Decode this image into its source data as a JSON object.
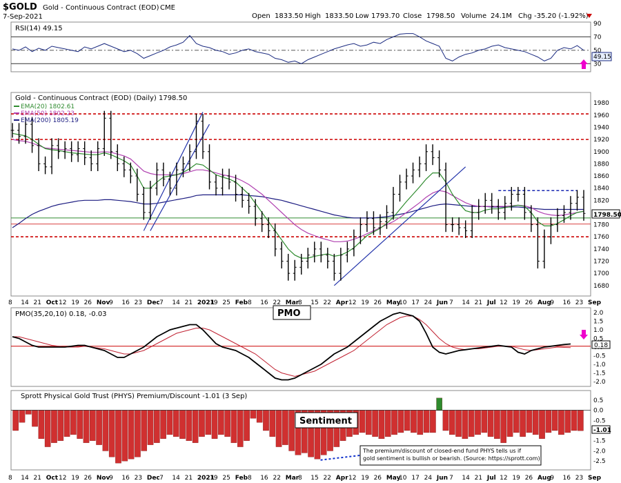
{
  "header": {
    "symbol": "$GOLD",
    "name": "Gold - Continuous Contract (EOD)",
    "exchange": "CME",
    "date": "7-Sep-2021",
    "open_label": "Open",
    "open": "1833.50",
    "high_label": "High",
    "high": "1833.50",
    "low_label": "Low",
    "low": "1793.70",
    "close_label": "Close",
    "close": "1798.50",
    "volume_label": "Volume",
    "volume": "24.1M",
    "chg_label": "Chg",
    "chg": "-35.20 (-1.92%)"
  },
  "colors": {
    "candle": "#000000",
    "ema20": "#2e8b2e",
    "ema50": "#b040b0",
    "ema200": "#1a1a80",
    "rsi": "#1a2a80",
    "pmo": "#000000",
    "pmo_signal": "#c02030",
    "hist_neg": "#d03030",
    "hist_pos": "#2e8b2e",
    "hline_red": "#cc0000",
    "hline_green": "#2e8b2e",
    "trend": "#2233aa",
    "arrow": "#ee00cc",
    "tag_bg": "#e8f0ff"
  },
  "chart_data": [
    {
      "panel": "rsi",
      "type": "line",
      "title": "RSI(14) 49.15",
      "ylim": [
        20,
        90
      ],
      "ticks": [
        90,
        70,
        50,
        30
      ],
      "levels": [
        70,
        30
      ],
      "current": "49.15",
      "values": [
        52,
        50,
        55,
        48,
        53,
        50,
        56,
        54,
        52,
        50,
        48,
        55,
        52,
        56,
        60,
        56,
        52,
        48,
        50,
        45,
        38,
        42,
        46,
        50,
        55,
        58,
        62,
        72,
        60,
        56,
        54,
        50,
        48,
        44,
        46,
        50,
        52,
        48,
        46,
        44,
        38,
        36,
        32,
        34,
        30,
        36,
        40,
        44,
        48,
        52,
        55,
        58,
        60,
        56,
        58,
        62,
        60,
        66,
        70,
        74,
        75,
        75,
        70,
        64,
        60,
        56,
        38,
        34,
        40,
        44,
        46,
        50,
        52,
        56,
        58,
        54,
        52,
        50,
        48,
        44,
        40,
        34,
        38,
        50,
        54,
        52,
        57,
        50
      ],
      "unit": "2021"
    },
    {
      "panel": "price",
      "type": "candlestick",
      "title": "Gold - Continuous Contract (EOD) (Daily) 1798.50",
      "legend": [
        {
          "name": "EMA(20) 1802.61",
          "color": "#2e8b2e"
        },
        {
          "name": "EMA(50) 1802.23",
          "color": "#b040b0"
        },
        {
          "name": "EMA(200) 1805.19",
          "color": "#1a1a80"
        }
      ],
      "ylim": [
        1665,
        1995
      ],
      "ticks": [
        1980,
        1960,
        1940,
        1920,
        1900,
        1880,
        1860,
        1840,
        1820,
        1800,
        1780,
        1760,
        1740,
        1720,
        1700,
        1680
      ],
      "close_label": "1798.50",
      "resistance_lines": [
        1962,
        1920,
        1760
      ],
      "support_green": 1791,
      "close_line": 1790,
      "top_dashed": {
        "value": 1836,
        "from": 74,
        "to": 86
      },
      "x_labels": [
        "8",
        "14",
        "21",
        "Oct",
        "12",
        "19",
        "26",
        "Nov",
        "9",
        "16",
        "23",
        "Dec",
        "7",
        "14",
        "21",
        "2021",
        "19",
        "25",
        "Feb",
        "8",
        "16",
        "22",
        "Mar",
        "8",
        "15",
        "22",
        "Apr",
        "12",
        "19",
        "26",
        "May",
        "10",
        "17",
        "24",
        "Jun",
        "7",
        "14",
        "21",
        "Jul",
        "12",
        "19",
        "26",
        "Aug",
        "9",
        "16",
        "23",
        "Sep"
      ],
      "closes": [
        1935,
        1925,
        1945,
        1910,
        1880,
        1875,
        1910,
        1900,
        1905,
        1895,
        1905,
        1890,
        1880,
        1905,
        1955,
        1900,
        1880,
        1870,
        1860,
        1830,
        1800,
        1840,
        1870,
        1855,
        1840,
        1870,
        1880,
        1900,
        1950,
        1900,
        1850,
        1840,
        1860,
        1850,
        1830,
        1820,
        1810,
        1790,
        1780,
        1770,
        1740,
        1720,
        1700,
        1710,
        1720,
        1730,
        1740,
        1730,
        1720,
        1700,
        1730,
        1740,
        1760,
        1780,
        1790,
        1775,
        1785,
        1800,
        1830,
        1850,
        1860,
        1870,
        1880,
        1900,
        1890,
        1870,
        1780,
        1780,
        1775,
        1770,
        1800,
        1810,
        1820,
        1810,
        1800,
        1815,
        1830,
        1830,
        1800,
        1780,
        1720,
        1760,
        1780,
        1795,
        1800,
        1815,
        1825,
        1798.5
      ],
      "trend_lines": [
        {
          "from": [
            20,
            1770
          ],
          "to": [
            29,
            1965
          ]
        },
        {
          "from": [
            21,
            1770
          ],
          "to": [
            30,
            1945
          ]
        },
        {
          "from": [
            49,
            1680
          ],
          "to": [
            69,
            1875
          ]
        }
      ],
      "ema20": [
        1930,
        1928,
        1926,
        1920,
        1912,
        1905,
        1903,
        1902,
        1900,
        1898,
        1897,
        1896,
        1895,
        1895,
        1898,
        1895,
        1890,
        1885,
        1878,
        1860,
        1840,
        1840,
        1850,
        1858,
        1860,
        1862,
        1866,
        1872,
        1880,
        1878,
        1870,
        1862,
        1858,
        1855,
        1850,
        1840,
        1830,
        1815,
        1800,
        1785,
        1770,
        1755,
        1740,
        1730,
        1725,
        1725,
        1728,
        1730,
        1732,
        1728,
        1730,
        1735,
        1742,
        1752,
        1762,
        1768,
        1774,
        1782,
        1792,
        1805,
        1818,
        1830,
        1842,
        1855,
        1865,
        1865,
        1850,
        1830,
        1815,
        1803,
        1800,
        1800,
        1804,
        1806,
        1806,
        1808,
        1810,
        1812,
        1810,
        1800,
        1785,
        1778,
        1778,
        1782,
        1788,
        1795,
        1800,
        1802
      ],
      "ema50": [
        1920,
        1918,
        1917,
        1914,
        1910,
        1906,
        1905,
        1904,
        1903,
        1902,
        1901,
        1900,
        1899,
        1899,
        1900,
        1899,
        1896,
        1893,
        1888,
        1878,
        1868,
        1864,
        1862,
        1862,
        1862,
        1862,
        1864,
        1867,
        1870,
        1870,
        1868,
        1865,
        1862,
        1860,
        1857,
        1852,
        1846,
        1838,
        1830,
        1820,
        1810,
        1800,
        1790,
        1780,
        1772,
        1766,
        1762,
        1758,
        1755,
        1752,
        1752,
        1753,
        1756,
        1760,
        1765,
        1770,
        1775,
        1780,
        1785,
        1792,
        1800,
        1808,
        1816,
        1825,
        1832,
        1836,
        1834,
        1828,
        1822,
        1816,
        1812,
        1810,
        1810,
        1810,
        1810,
        1810,
        1811,
        1812,
        1811,
        1808,
        1802,
        1798,
        1796,
        1795,
        1796,
        1798,
        1800,
        1802
      ],
      "ema200": [
        1775,
        1782,
        1790,
        1797,
        1802,
        1806,
        1810,
        1813,
        1815,
        1817,
        1819,
        1820,
        1820,
        1820,
        1821,
        1821,
        1820,
        1819,
        1818,
        1816,
        1814,
        1814,
        1815,
        1817,
        1819,
        1821,
        1823,
        1825,
        1828,
        1829,
        1829,
        1829,
        1829,
        1829,
        1829,
        1829,
        1828,
        1827,
        1826,
        1824,
        1822,
        1820,
        1817,
        1814,
        1811,
        1808,
        1805,
        1802,
        1799,
        1796,
        1794,
        1792,
        1791,
        1791,
        1791,
        1791,
        1792,
        1793,
        1795,
        1797,
        1799,
        1802,
        1805,
        1808,
        1811,
        1813,
        1814,
        1813,
        1812,
        1811,
        1810,
        1810,
        1810,
        1809,
        1809,
        1809,
        1809,
        1809,
        1808,
        1807,
        1806,
        1805,
        1805,
        1805,
        1805,
        1805,
        1805,
        1805
      ]
    },
    {
      "panel": "pmo",
      "type": "line",
      "title": "PMO(35,20,10) 0.18, -0.03",
      "tag": "PMO",
      "ylim": [
        -2.2,
        2.2
      ],
      "ticks": [
        2.0,
        1.5,
        1.0,
        0.5,
        0.0,
        -0.5,
        -1.0,
        -1.5,
        -2.0
      ],
      "current": "0.18",
      "signal_current": "-0.03",
      "zero_line": 0.05,
      "pmo": [
        0.6,
        0.5,
        0.3,
        0.1,
        0.0,
        0.0,
        0.0,
        0.0,
        0.0,
        0.05,
        0.1,
        0.1,
        0.0,
        -0.1,
        -0.2,
        -0.4,
        -0.6,
        -0.6,
        -0.4,
        -0.2,
        0.0,
        0.3,
        0.6,
        0.8,
        1.0,
        1.1,
        1.2,
        1.3,
        1.3,
        1.0,
        0.6,
        0.2,
        0.0,
        -0.1,
        -0.2,
        -0.4,
        -0.6,
        -0.9,
        -1.2,
        -1.5,
        -1.8,
        -1.9,
        -1.9,
        -1.8,
        -1.6,
        -1.4,
        -1.2,
        -1.0,
        -0.7,
        -0.4,
        -0.2,
        0.0,
        0.3,
        0.6,
        0.9,
        1.2,
        1.5,
        1.7,
        1.9,
        2.0,
        1.9,
        1.8,
        1.5,
        0.8,
        0.0,
        -0.3,
        -0.4,
        -0.3,
        -0.2,
        -0.15,
        -0.1,
        -0.05,
        0.0,
        0.05,
        0.1,
        0.05,
        0.0,
        -0.3,
        -0.4,
        -0.2,
        -0.1,
        0.0,
        0.05,
        0.1,
        0.15,
        0.18
      ],
      "signal": [
        0.6,
        0.6,
        0.5,
        0.4,
        0.3,
        0.2,
        0.1,
        0.05,
        0.0,
        0.0,
        0.0,
        0.05,
        0.0,
        -0.05,
        -0.1,
        -0.2,
        -0.3,
        -0.4,
        -0.4,
        -0.3,
        -0.2,
        0.0,
        0.2,
        0.4,
        0.6,
        0.8,
        0.9,
        1.0,
        1.1,
        1.1,
        1.0,
        0.8,
        0.6,
        0.4,
        0.2,
        0.0,
        -0.2,
        -0.4,
        -0.7,
        -1.0,
        -1.3,
        -1.5,
        -1.6,
        -1.7,
        -1.6,
        -1.5,
        -1.4,
        -1.2,
        -1.0,
        -0.8,
        -0.6,
        -0.4,
        -0.2,
        0.1,
        0.4,
        0.7,
        1.0,
        1.3,
        1.5,
        1.7,
        1.8,
        1.8,
        1.6,
        1.3,
        0.9,
        0.5,
        0.2,
        0.0,
        -0.1,
        -0.15,
        -0.1,
        -0.1,
        -0.05,
        0.0,
        0.05,
        0.05,
        0.05,
        -0.05,
        -0.15,
        -0.2,
        -0.15,
        -0.1,
        -0.05,
        0.0,
        -0.02,
        -0.03
      ]
    },
    {
      "panel": "phys",
      "type": "bar",
      "title": "Sprott Physical Gold Trust (PHYS) Premium/Discount -1.01 (3 Sep)",
      "tag": "Sentiment",
      "ylim": [
        -2.9,
        0.9
      ],
      "ticks": [
        0.5,
        0.0,
        -0.5,
        -1.0,
        -1.5,
        -2.0,
        -2.5
      ],
      "current": "-1.01",
      "note": "The premium/discount of closed-end fund PHYS tells us if gold sentiment is bullish or bearish. (Source: https://sprott.com)",
      "values": [
        -1.0,
        -0.6,
        -0.2,
        -0.8,
        -1.4,
        -1.8,
        -1.6,
        -1.5,
        -1.3,
        -1.2,
        -1.4,
        -1.6,
        -1.5,
        -1.7,
        -2.0,
        -2.3,
        -2.6,
        -2.5,
        -2.4,
        -2.3,
        -2.0,
        -1.7,
        -1.6,
        -1.4,
        -1.2,
        -1.3,
        -1.4,
        -1.5,
        -1.6,
        -1.3,
        -1.2,
        -1.4,
        -1.2,
        -1.3,
        -1.6,
        -1.8,
        -1.5,
        -0.4,
        -0.6,
        -1.0,
        -1.3,
        -1.8,
        -1.7,
        -2.0,
        -2.2,
        -2.1,
        -2.3,
        -2.4,
        -2.2,
        -2.0,
        -1.8,
        -1.5,
        -1.3,
        -1.2,
        -1.1,
        -1.2,
        -1.3,
        -1.4,
        -1.3,
        -1.2,
        -1.1,
        -1.0,
        -1.1,
        -1.2,
        -1.1,
        -1.1,
        0.6,
        -1.0,
        -1.2,
        -1.3,
        -1.4,
        -1.3,
        -1.2,
        -1.1,
        -1.3,
        -1.4,
        -1.6,
        -1.3,
        -1.1,
        -1.3,
        -1.1,
        -1.2,
        -1.4,
        -1.1,
        -1.0,
        -1.2,
        -1.1,
        -1.0,
        -1.01
      ],
      "dashed": {
        "from": [
          48,
          -2.45
        ],
        "to": [
          56,
          -2.15
        ]
      }
    }
  ]
}
